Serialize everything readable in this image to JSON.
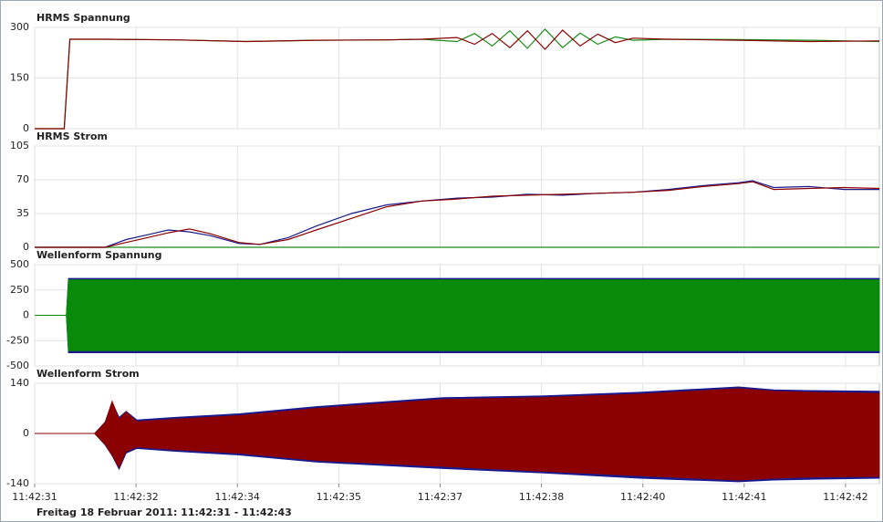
{
  "chart_data": [
    {
      "type": "line",
      "title": "HRMS Spannung",
      "xlim": [
        0,
        12
      ],
      "ylim": [
        0,
        300
      ],
      "yticks": [
        0,
        150,
        300
      ],
      "grid": true,
      "x": [
        0,
        0.42,
        0.5,
        1,
        2,
        3,
        4,
        5,
        5.5,
        6,
        6.25,
        6.5,
        6.75,
        7,
        7.25,
        7.5,
        7.75,
        8,
        8.25,
        8.5,
        9,
        10,
        11,
        12
      ],
      "series": [
        {
          "color": "#1a8c1a",
          "values": [
            0,
            0,
            265,
            265,
            263,
            258,
            262,
            263,
            265,
            258,
            282,
            245,
            290,
            238,
            295,
            240,
            283,
            250,
            272,
            262,
            265,
            264,
            262,
            258
          ]
        },
        {
          "color": "#8b0000",
          "values": [
            0,
            0,
            265,
            265,
            263,
            258,
            262,
            263,
            265,
            270,
            250,
            282,
            240,
            290,
            235,
            292,
            245,
            280,
            255,
            268,
            265,
            262,
            258,
            260
          ]
        }
      ]
    },
    {
      "type": "line",
      "title": "HRMS Strom",
      "xlim": [
        0,
        12
      ],
      "ylim": [
        0,
        105
      ],
      "yticks": [
        0,
        35,
        70,
        105
      ],
      "grid": true,
      "x": [
        0,
        1,
        1.3,
        1.6,
        1.9,
        2.2,
        2.5,
        2.9,
        3.2,
        3.6,
        4,
        4.5,
        5,
        5.5,
        6,
        6.5,
        7,
        7.5,
        8,
        8.5,
        9,
        9.5,
        10,
        10.2,
        10.5,
        11,
        11.5,
        12
      ],
      "series": [
        {
          "color": "#1a8c1a",
          "values": [
            0,
            0,
            0,
            0,
            0,
            0,
            0,
            0,
            0,
            0,
            0,
            0,
            0,
            0,
            0,
            0,
            0,
            0,
            0,
            0,
            0,
            0,
            0,
            0,
            0,
            0,
            0,
            0
          ]
        },
        {
          "color": "#1a1a8c",
          "values": [
            0,
            0,
            8,
            13,
            18,
            16,
            12,
            4,
            3,
            10,
            22,
            35,
            44,
            48,
            51,
            52,
            55,
            54,
            56,
            57,
            60,
            64,
            67,
            69,
            62,
            63,
            60,
            60
          ]
        },
        {
          "color": "#8b0000",
          "values": [
            0,
            0,
            5,
            10,
            15,
            19,
            14,
            5,
            3,
            8,
            18,
            30,
            42,
            48,
            50,
            53,
            54,
            55,
            56,
            57,
            59,
            63,
            66,
            68,
            60,
            61,
            62,
            61
          ]
        }
      ]
    },
    {
      "type": "band",
      "title": "Wellenform Spannung",
      "xlim": [
        0,
        12
      ],
      "ylim": [
        -500,
        500
      ],
      "yticks": [
        -500,
        -250,
        0,
        250,
        500
      ],
      "grid": true,
      "x": [
        0,
        0.45,
        0.48,
        12
      ],
      "series": [
        {
          "color": "#1a1a8c",
          "high": [
            0,
            0,
            365,
            365
          ],
          "low": [
            0,
            0,
            -370,
            -370
          ]
        },
        {
          "color": "#0a8a0a",
          "high": [
            0,
            0,
            350,
            350
          ],
          "low": [
            0,
            0,
            -350,
            -350
          ]
        }
      ]
    },
    {
      "type": "band",
      "title": "Wellenform Strom",
      "xlim": [
        0,
        12
      ],
      "ylim": [
        -140,
        140
      ],
      "yticks": [
        -140,
        0,
        140
      ],
      "grid": true,
      "x": [
        0,
        0.85,
        1,
        1.1,
        1.2,
        1.3,
        1.45,
        2,
        2.9,
        4,
        5.8,
        7.2,
        8.6,
        10,
        10.5,
        11,
        12
      ],
      "xticks": [
        {
          "value": 0,
          "label": "11:42:31"
        },
        {
          "value": 1.44,
          "label": "11:42:32"
        },
        {
          "value": 2.88,
          "label": "11:42:34"
        },
        {
          "value": 4.32,
          "label": "11:42:35"
        },
        {
          "value": 5.76,
          "label": "11:42:37"
        },
        {
          "value": 7.2,
          "label": "11:42:38"
        },
        {
          "value": 8.64,
          "label": "11:42:40"
        },
        {
          "value": 10.08,
          "label": "11:42:41"
        },
        {
          "value": 11.52,
          "label": "11:42:42"
        }
      ],
      "series": [
        {
          "color": "#1a1a8c",
          "high": [
            0,
            0,
            32,
            88,
            45,
            62,
            38,
            45,
            55,
            75,
            100,
            105,
            115,
            130,
            122,
            120,
            118
          ],
          "low": [
            0,
            0,
            -32,
            -62,
            -100,
            -55,
            -42,
            -50,
            -60,
            -80,
            -98,
            -110,
            -125,
            -135,
            -130,
            -128,
            -125
          ]
        },
        {
          "color": "#8b0000",
          "high": [
            0,
            0,
            30,
            90,
            40,
            60,
            33,
            40,
            50,
            70,
            95,
            100,
            110,
            125,
            118,
            115,
            112
          ],
          "low": [
            0,
            0,
            -30,
            -60,
            -95,
            -50,
            -38,
            -45,
            -55,
            -75,
            -92,
            -105,
            -118,
            -130,
            -125,
            -122,
            -120
          ]
        }
      ]
    }
  ],
  "footer": "Freitag 18 Februar 2011: 11:42:31 - 11:42:43"
}
